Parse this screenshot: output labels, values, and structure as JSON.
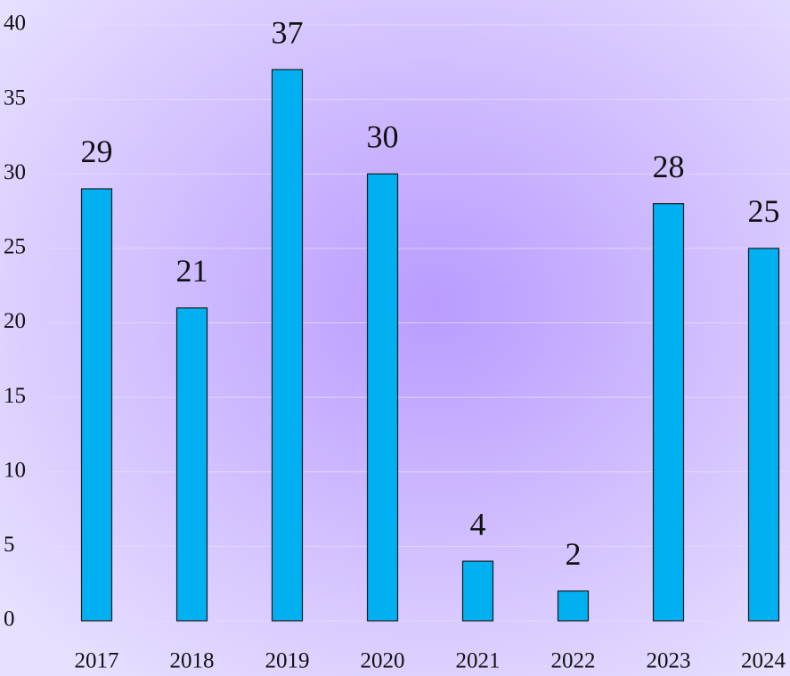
{
  "chart_data": {
    "type": "bar",
    "categories": [
      "2017",
      "2018",
      "2019",
      "2020",
      "2021",
      "2022",
      "2023",
      "2024"
    ],
    "values": [
      29,
      21,
      37,
      30,
      4,
      2,
      28,
      25
    ],
    "color": "#00b0f0",
    "ylim": [
      0,
      40
    ],
    "yticks": [
      0,
      5,
      10,
      15,
      20,
      25,
      30,
      35,
      40
    ],
    "grid": true
  }
}
